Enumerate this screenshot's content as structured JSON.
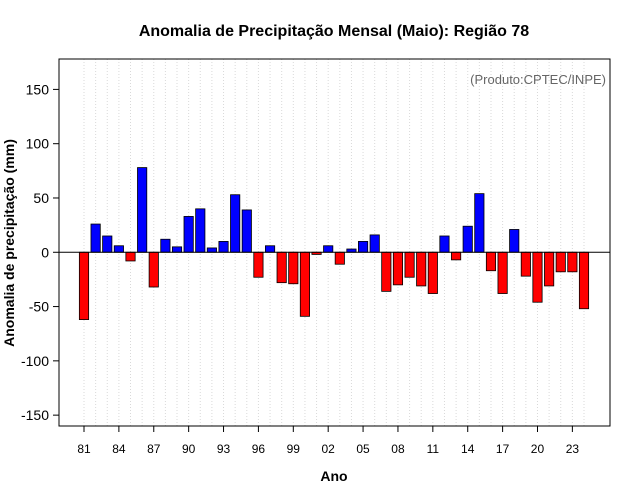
{
  "chart_data": {
    "type": "bar",
    "title": "Anomalia de Precipitação Mensal (Maio): Região 78",
    "xlabel": "Ano",
    "ylabel": "Anomalia de precipitação (mm)",
    "annotation": "(Produto:CPTEC/INPE)",
    "ylim": [
      -160,
      178
    ],
    "yticks": [
      -150,
      -100,
      -50,
      0,
      50,
      100,
      150
    ],
    "x_tick_labels": [
      "81",
      "84",
      "87",
      "90",
      "93",
      "96",
      "99",
      "02",
      "05",
      "08",
      "11",
      "14",
      "17",
      "20",
      "23"
    ],
    "years": [
      1981,
      1982,
      1983,
      1984,
      1985,
      1986,
      1987,
      1988,
      1989,
      1990,
      1991,
      1992,
      1993,
      1994,
      1995,
      1996,
      1997,
      1998,
      1999,
      2000,
      2001,
      2002,
      2003,
      2004,
      2005,
      2006,
      2007,
      2008,
      2009,
      2010,
      2011,
      2012,
      2013,
      2014,
      2015,
      2016,
      2017,
      2018,
      2019,
      2020,
      2021,
      2022,
      2023,
      2024
    ],
    "values": [
      -62,
      26,
      15,
      6,
      -8,
      78,
      -32,
      12,
      5,
      33,
      40,
      4,
      10,
      53,
      39,
      -23,
      6,
      -28,
      -29,
      -59,
      -2,
      6,
      -11,
      3,
      10,
      16,
      -36,
      -30,
      -23,
      -31,
      -38,
      15,
      -7,
      24,
      54,
      -17,
      -38,
      21,
      -22,
      -46,
      -31,
      -18,
      -18,
      -52
    ],
    "colors": {
      "positive": "#0000ff",
      "negative": "#ff0000",
      "grid": "#d9d9d9",
      "zero_line": "#000000"
    }
  }
}
